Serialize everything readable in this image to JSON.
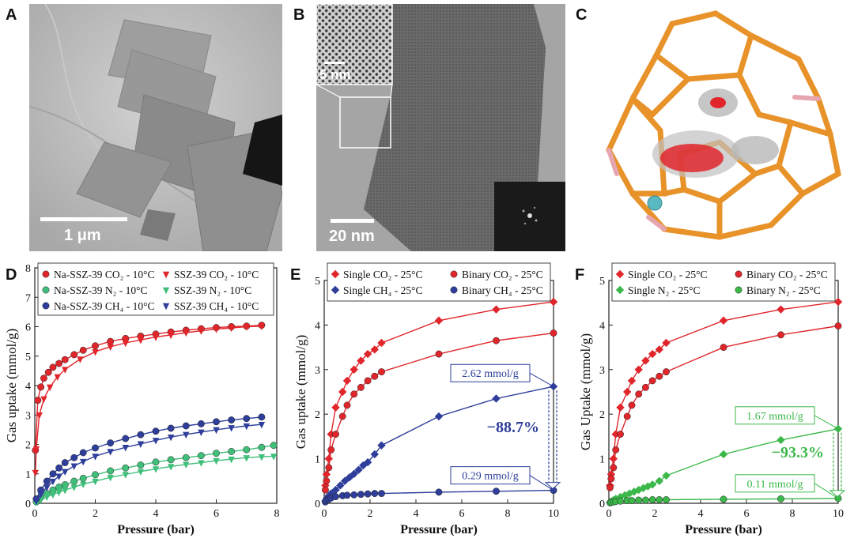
{
  "panels": {
    "A": {
      "label": "A",
      "scale_text": "1 μm"
    },
    "B": {
      "label": "B",
      "scale_text": "20 nm",
      "inset_scale_text": "5 nm"
    },
    "C": {
      "label": "C"
    },
    "D": {
      "label": "D"
    },
    "E": {
      "label": "E"
    },
    "F": {
      "label": "F"
    }
  },
  "colors": {
    "red": "#e0262b",
    "blue": "#2e3e9a",
    "green": "#3fbf7a",
    "green2": "#3cb84a",
    "orange": "#e8922a"
  },
  "chart_data": [
    {
      "type": "scatter",
      "panel": "D",
      "xlabel": "Pressure (bar)",
      "ylabel": "Gas uptake (mmol/g)",
      "xlim": [
        0,
        8
      ],
      "ylim": [
        0,
        8
      ],
      "xticks": [
        0,
        2,
        4,
        6,
        8
      ],
      "yticks": [
        0,
        1,
        2,
        3,
        4,
        5,
        6,
        7,
        8
      ],
      "legend_placement": "top",
      "series": [
        {
          "name": "Na-SSZ-39 CO₂ - 10°C",
          "color": "#e0262b",
          "marker": "circle",
          "x": [
            0.02,
            0.1,
            0.2,
            0.3,
            0.45,
            0.6,
            0.8,
            1.0,
            1.3,
            1.6,
            2.0,
            2.5,
            3.0,
            3.5,
            4.0,
            4.5,
            5.0,
            5.5,
            6.0,
            6.5,
            7.0,
            7.5
          ],
          "y": [
            1.8,
            3.5,
            3.95,
            4.25,
            4.45,
            4.62,
            4.75,
            4.88,
            5.05,
            5.2,
            5.35,
            5.5,
            5.6,
            5.68,
            5.75,
            5.82,
            5.88,
            5.93,
            5.97,
            6.0,
            6.02,
            6.05
          ]
        },
        {
          "name": "SSZ-39 CO₂ - 10°C",
          "color": "#e0262b",
          "marker": "triangle-down",
          "x": [
            0.02,
            0.05,
            0.15,
            0.3,
            0.5,
            0.75,
            1.0,
            1.5,
            2.0,
            2.5,
            3.0,
            3.5,
            4.0,
            4.5,
            5.0,
            5.5,
            6.0,
            6.5,
            7.0,
            7.5
          ],
          "y": [
            1.05,
            1.85,
            3.0,
            3.55,
            3.95,
            4.3,
            4.55,
            4.9,
            5.15,
            5.32,
            5.45,
            5.55,
            5.65,
            5.72,
            5.8,
            5.86,
            5.92,
            5.96,
            6.0,
            6.02
          ]
        },
        {
          "name": "Na-SSZ-39 N₂ - 10°C",
          "color": "#3fbf7a",
          "marker": "circle",
          "x": [
            0.05,
            0.2,
            0.4,
            0.6,
            0.8,
            1.0,
            1.3,
            1.6,
            2.0,
            2.5,
            3.0,
            3.5,
            4.0,
            4.5,
            5.0,
            5.5,
            6.0,
            6.5,
            7.0,
            7.5,
            7.9
          ],
          "y": [
            0.05,
            0.2,
            0.33,
            0.45,
            0.55,
            0.63,
            0.75,
            0.85,
            0.97,
            1.1,
            1.2,
            1.3,
            1.4,
            1.48,
            1.55,
            1.62,
            1.7,
            1.76,
            1.82,
            1.9,
            1.97
          ]
        },
        {
          "name": "SSZ-39 N₂ - 10°C",
          "color": "#3fbf7a",
          "marker": "triangle-down",
          "x": [
            0.05,
            0.2,
            0.4,
            0.6,
            0.8,
            1.0,
            1.3,
            1.6,
            2.0,
            2.5,
            3.0,
            3.5,
            4.0,
            4.5,
            5.0,
            5.5,
            6.0,
            6.5,
            7.0,
            7.5,
            7.9
          ],
          "y": [
            0.03,
            0.12,
            0.22,
            0.3,
            0.38,
            0.45,
            0.55,
            0.65,
            0.75,
            0.88,
            0.98,
            1.08,
            1.17,
            1.25,
            1.32,
            1.38,
            1.45,
            1.5,
            1.55,
            1.58,
            1.6
          ]
        },
        {
          "name": "Na-SSZ-39 CH₄ - 10°C",
          "color": "#2e3e9a",
          "marker": "circle",
          "x": [
            0.05,
            0.2,
            0.4,
            0.6,
            0.8,
            1.0,
            1.3,
            1.6,
            2.0,
            2.5,
            3.0,
            3.5,
            4.0,
            4.5,
            5.0,
            5.5,
            6.0,
            6.5,
            7.0,
            7.5
          ],
          "y": [
            0.15,
            0.45,
            0.75,
            1.0,
            1.2,
            1.38,
            1.55,
            1.72,
            1.88,
            2.05,
            2.2,
            2.33,
            2.45,
            2.55,
            2.63,
            2.7,
            2.77,
            2.83,
            2.88,
            2.93
          ]
        },
        {
          "name": "SSZ-39 CH₄ - 10°C",
          "color": "#2e3e9a",
          "marker": "triangle-down",
          "x": [
            0.05,
            0.2,
            0.4,
            0.6,
            0.8,
            1.0,
            1.3,
            1.6,
            2.0,
            2.5,
            3.0,
            3.5,
            4.0,
            4.5,
            5.0,
            5.5,
            6.0,
            6.5,
            7.0,
            7.5
          ],
          "y": [
            0.08,
            0.3,
            0.55,
            0.75,
            0.92,
            1.08,
            1.27,
            1.42,
            1.6,
            1.76,
            1.9,
            2.02,
            2.14,
            2.25,
            2.34,
            2.42,
            2.5,
            2.57,
            2.63,
            2.68
          ]
        }
      ]
    },
    {
      "type": "scatter",
      "panel": "E",
      "xlabel": "Pressure (bar)",
      "ylabel": "Gas uptake (mmol/g)",
      "xlim": [
        0,
        10
      ],
      "ylim": [
        0,
        5
      ],
      "xticks": [
        0,
        2,
        4,
        6,
        8,
        10
      ],
      "yticks": [
        0,
        1,
        2,
        3,
        4,
        5
      ],
      "legend_placement": "top",
      "series": [
        {
          "name": "Single CO₂ - 25°C",
          "color": "#e0262b",
          "marker": "diamond",
          "x": [
            0.05,
            0.1,
            0.2,
            0.3,
            0.5,
            0.8,
            1.0,
            1.3,
            1.6,
            1.9,
            2.2,
            2.5,
            5.0,
            7.5,
            10.0
          ],
          "y": [
            0.4,
            0.65,
            1.0,
            1.55,
            2.15,
            2.5,
            2.75,
            3.0,
            3.2,
            3.35,
            3.45,
            3.6,
            4.1,
            4.35,
            4.52
          ]
        },
        {
          "name": "Binary CO₂ - 25°C",
          "color": "#e0262b",
          "marker": "circle",
          "x": [
            0.05,
            0.1,
            0.2,
            0.3,
            0.5,
            0.8,
            1.0,
            1.3,
            1.6,
            1.9,
            2.2,
            2.5,
            5.0,
            7.5,
            10.0
          ],
          "y": [
            0.3,
            0.5,
            0.8,
            1.2,
            1.55,
            1.95,
            2.2,
            2.45,
            2.6,
            2.75,
            2.85,
            2.95,
            3.35,
            3.65,
            3.82
          ]
        },
        {
          "name": "Single CH₄ - 25°C",
          "color": "#2e3e9a",
          "marker": "diamond",
          "x": [
            0.05,
            0.1,
            0.2,
            0.3,
            0.5,
            0.7,
            0.9,
            1.1,
            1.3,
            1.5,
            1.7,
            1.9,
            2.2,
            2.5,
            5.0,
            7.5,
            10.0
          ],
          "y": [
            0.05,
            0.1,
            0.17,
            0.22,
            0.3,
            0.4,
            0.5,
            0.58,
            0.66,
            0.75,
            0.85,
            0.92,
            1.1,
            1.3,
            1.95,
            2.35,
            2.62
          ]
        },
        {
          "name": "Binary CH₄ - 25°C",
          "color": "#2e3e9a",
          "marker": "circle",
          "x": [
            0.05,
            0.1,
            0.2,
            0.3,
            0.5,
            0.8,
            1.0,
            1.3,
            1.6,
            1.9,
            2.2,
            2.5,
            5.0,
            7.5,
            10.0
          ],
          "y": [
            0.03,
            0.06,
            0.09,
            0.12,
            0.15,
            0.17,
            0.18,
            0.19,
            0.2,
            0.21,
            0.22,
            0.22,
            0.25,
            0.27,
            0.29
          ]
        }
      ],
      "annotations": {
        "top_box": "2.62 mmol/g",
        "bottom_box": "0.29 mmol/g",
        "percent": "−88.7%"
      }
    },
    {
      "type": "scatter",
      "panel": "F",
      "xlabel": "Pressure (bar)",
      "ylabel": "Gas Uptake (mmol/g)",
      "xlim": [
        0,
        10
      ],
      "ylim": [
        0,
        5
      ],
      "xticks": [
        0,
        2,
        4,
        6,
        8,
        10
      ],
      "yticks": [
        0,
        1,
        2,
        3,
        4,
        5
      ],
      "legend_placement": "top",
      "series": [
        {
          "name": "Single CO₂ - 25°C",
          "color": "#e0262b",
          "marker": "diamond",
          "x": [
            0.05,
            0.1,
            0.2,
            0.3,
            0.5,
            0.8,
            1.0,
            1.3,
            1.6,
            1.9,
            2.2,
            2.5,
            5.0,
            7.5,
            10.0
          ],
          "y": [
            0.4,
            0.65,
            1.0,
            1.55,
            2.15,
            2.5,
            2.75,
            3.0,
            3.2,
            3.35,
            3.45,
            3.6,
            4.1,
            4.35,
            4.52
          ]
        },
        {
          "name": "Binary CO₂ - 25°C",
          "color": "#e0262b",
          "marker": "circle",
          "x": [
            0.05,
            0.1,
            0.2,
            0.3,
            0.5,
            0.8,
            1.0,
            1.3,
            1.6,
            1.9,
            2.2,
            2.5,
            5.0,
            7.5,
            10.0
          ],
          "y": [
            0.35,
            0.55,
            0.8,
            1.2,
            1.55,
            1.95,
            2.2,
            2.45,
            2.6,
            2.75,
            2.85,
            2.95,
            3.5,
            3.78,
            3.98
          ]
        },
        {
          "name": "Single N₂  - 25°C",
          "color": "#3cb84a",
          "marker": "diamond",
          "x": [
            0.05,
            0.1,
            0.2,
            0.3,
            0.5,
            0.7,
            0.9,
            1.1,
            1.3,
            1.5,
            1.7,
            1.9,
            2.2,
            2.5,
            5.0,
            7.5,
            10.0
          ],
          "y": [
            0.02,
            0.04,
            0.07,
            0.1,
            0.14,
            0.18,
            0.22,
            0.26,
            0.3,
            0.34,
            0.38,
            0.42,
            0.5,
            0.62,
            1.1,
            1.42,
            1.67
          ]
        },
        {
          "name": "Binary N₂  - 25°C",
          "color": "#3cb84a",
          "marker": "circle",
          "x": [
            0.05,
            0.1,
            0.2,
            0.3,
            0.5,
            0.8,
            1.0,
            1.3,
            1.6,
            1.9,
            2.2,
            2.5,
            5.0,
            7.5,
            10.0
          ],
          "y": [
            0.01,
            0.02,
            0.03,
            0.04,
            0.05,
            0.06,
            0.06,
            0.07,
            0.07,
            0.08,
            0.08,
            0.08,
            0.09,
            0.1,
            0.11
          ]
        }
      ],
      "annotations": {
        "top_box": "1.67 mmol/g",
        "bottom_box": "0.11 mmol/g",
        "percent": "−93.3%"
      }
    }
  ]
}
